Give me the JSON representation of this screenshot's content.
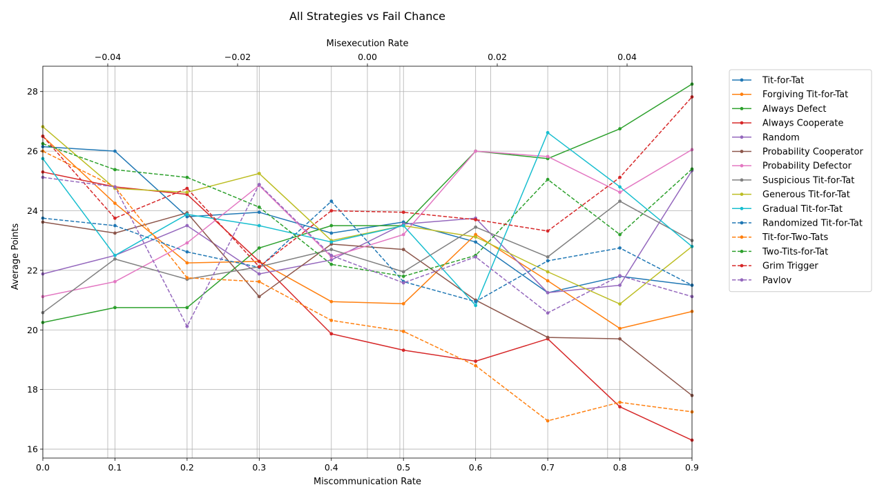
{
  "chart_data": {
    "type": "line",
    "title": "All Strategies vs Fail Chance",
    "xlabel": "Miscommunication Rate",
    "ylabel": "Average Points",
    "x2label": "Misexecution Rate",
    "x": [
      0.0,
      0.1,
      0.2,
      0.3,
      0.4,
      0.5,
      0.6,
      0.7,
      0.8,
      0.9
    ],
    "xlim": [
      0.0,
      0.9
    ],
    "ylim": [
      15.7,
      28.85
    ],
    "x2lim": [
      -0.05,
      0.05
    ],
    "x2_points": [
      -0.04,
      -0.017,
      -0.027,
      0.0,
      0.005,
      0.019,
      0.037
    ],
    "xticks": [
      "0.0",
      "0.1",
      "0.2",
      "0.3",
      "0.4",
      "0.5",
      "0.6",
      "0.7",
      "0.8",
      "0.9"
    ],
    "yticks": [
      "16",
      "18",
      "20",
      "22",
      "24",
      "26",
      "28"
    ],
    "x2ticks": [
      "−0.04",
      "−0.02",
      "0.00",
      "0.02",
      "0.04"
    ],
    "grid": true,
    "legend_position": "outside-right",
    "series": [
      {
        "name": "Tit-for-Tat",
        "color": "#1f77b4",
        "dash": false,
        "values": [
          26.15,
          26.0,
          23.8,
          23.95,
          23.25,
          23.62,
          22.95,
          21.25,
          21.8,
          21.5
        ]
      },
      {
        "name": "Forgiving Tit-for-Tat",
        "color": "#ff7f0e",
        "dash": false,
        "values": [
          26.5,
          24.25,
          22.25,
          22.3,
          20.95,
          20.88,
          23.2,
          21.65,
          20.05,
          20.62
        ]
      },
      {
        "name": "Always Defect",
        "color": "#2ca02c",
        "dash": false,
        "values": [
          20.25,
          20.75,
          20.75,
          22.75,
          23.5,
          23.5,
          26.0,
          25.75,
          26.75,
          28.25
        ]
      },
      {
        "name": "Always Cooperate",
        "color": "#d62728",
        "dash": false,
        "values": [
          25.3,
          24.8,
          24.55,
          22.3,
          19.87,
          19.32,
          18.95,
          19.7,
          17.42,
          16.3
        ]
      },
      {
        "name": "Random",
        "color": "#9467bd",
        "dash": false,
        "values": [
          21.88,
          22.5,
          23.5,
          21.88,
          22.35,
          23.55,
          23.75,
          21.25,
          21.5,
          25.35
        ]
      },
      {
        "name": "Probability Cooperator",
        "color": "#8c564b",
        "dash": false,
        "values": [
          23.62,
          23.25,
          23.93,
          21.12,
          22.88,
          22.7,
          21.0,
          19.75,
          19.7,
          17.8
        ]
      },
      {
        "name": "Probability Defector",
        "color": "#e377c2",
        "dash": false,
        "values": [
          21.12,
          21.62,
          22.92,
          24.85,
          22.45,
          23.2,
          26.0,
          25.82,
          24.62,
          26.05
        ]
      },
      {
        "name": "Suspicious Tit-for-Tat",
        "color": "#7f7f7f",
        "dash": false,
        "values": [
          20.58,
          22.38,
          21.7,
          22.12,
          22.7,
          21.95,
          23.45,
          22.45,
          24.32,
          23.0
        ]
      },
      {
        "name": "Generous Tit-for-Tat",
        "color": "#bcbd22",
        "dash": false,
        "values": [
          26.82,
          24.75,
          24.62,
          25.25,
          23.0,
          23.5,
          23.12,
          21.95,
          20.87,
          22.8
        ]
      },
      {
        "name": "Gradual Tit-for-Tat",
        "color": "#17becf",
        "dash": false,
        "values": [
          25.75,
          22.5,
          23.88,
          23.5,
          22.95,
          23.5,
          20.82,
          26.62,
          24.8,
          22.8
        ]
      },
      {
        "name": "Randomized Tit-for-Tat",
        "color": "#1f77b4",
        "dash": true,
        "values": [
          23.75,
          23.5,
          22.62,
          22.1,
          24.32,
          21.62,
          20.95,
          22.32,
          22.75,
          21.5
        ]
      },
      {
        "name": "Tit-for-Two-Tats",
        "color": "#ff7f0e",
        "dash": true,
        "values": [
          26.0,
          24.8,
          21.75,
          21.62,
          20.32,
          19.95,
          18.8,
          16.95,
          17.57,
          17.25
        ]
      },
      {
        "name": "Two-Tits-for-Tat",
        "color": "#2ca02c",
        "dash": true,
        "values": [
          26.25,
          25.38,
          25.12,
          24.12,
          22.2,
          21.8,
          22.5,
          25.05,
          23.2,
          25.4
        ]
      },
      {
        "name": "Grim Trigger",
        "color": "#d62728",
        "dash": true,
        "values": [
          26.5,
          23.75,
          24.75,
          22.12,
          24.0,
          23.95,
          23.7,
          23.32,
          25.12,
          27.82
        ]
      },
      {
        "name": "Pavlov",
        "color": "#9467bd",
        "dash": true,
        "values": [
          25.12,
          24.8,
          20.12,
          24.88,
          22.5,
          21.58,
          22.45,
          20.57,
          21.82,
          21.12
        ]
      }
    ]
  }
}
